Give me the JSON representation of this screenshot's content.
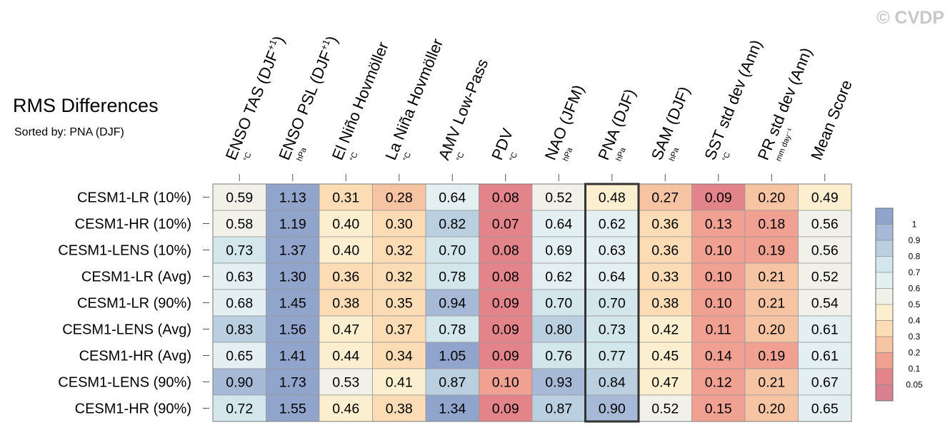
{
  "chart_data": {
    "type": "heatmap",
    "title": "RMS Differences",
    "subtitle": "Sorted by: PNA (DJF)",
    "copyright": "© CVDP",
    "columns": [
      {
        "name": "ENSO TAS (DJF",
        "sup": "+1",
        "close": ")",
        "unit": "°C"
      },
      {
        "name": "ENSO PSL (DJF",
        "sup": "+1",
        "close": ")",
        "unit": "hPa"
      },
      {
        "name": "El Niño Hovmöller",
        "sup": "",
        "close": "",
        "unit": "°C"
      },
      {
        "name": "La Niña Hovmöller",
        "sup": "",
        "close": "",
        "unit": "°C"
      },
      {
        "name": "AMV Low-Pass",
        "sup": "",
        "close": "",
        "unit": "°C"
      },
      {
        "name": "PDV",
        "sup": "",
        "close": "",
        "unit": "°C"
      },
      {
        "name": "NAO (JFM)",
        "sup": "",
        "close": "",
        "unit": "hPa"
      },
      {
        "name": "PNA (DJF)",
        "sup": "",
        "close": "",
        "unit": "hPa"
      },
      {
        "name": "SAM (DJF)",
        "sup": "",
        "close": "",
        "unit": "hPa"
      },
      {
        "name": "SST std dev (Ann)",
        "sup": "",
        "close": "",
        "unit": "°C"
      },
      {
        "name": "PR std dev (Ann)",
        "sup": "",
        "close": "",
        "unit": "mm day⁻¹"
      },
      {
        "name": "Mean Score",
        "sup": "",
        "close": "",
        "unit": ""
      }
    ],
    "rows": [
      "CESM1-LR (10%)",
      "CESM1-HR (10%)",
      "CESM1-LENS (10%)",
      "CESM1-LR (Avg)",
      "CESM1-LR (90%)",
      "CESM1-LENS (Avg)",
      "CESM1-HR (Avg)",
      "CESM1-LENS (90%)",
      "CESM1-HR (90%)"
    ],
    "values": [
      [
        "0.59",
        "1.13",
        "0.31",
        "0.28",
        "0.64",
        "0.08",
        "0.52",
        "0.48",
        "0.27",
        "0.09",
        "0.20",
        "0.49"
      ],
      [
        "0.58",
        "1.19",
        "0.40",
        "0.30",
        "0.82",
        "0.07",
        "0.64",
        "0.62",
        "0.36",
        "0.13",
        "0.18",
        "0.56"
      ],
      [
        "0.73",
        "1.37",
        "0.40",
        "0.32",
        "0.70",
        "0.08",
        "0.69",
        "0.63",
        "0.36",
        "0.10",
        "0.19",
        "0.56"
      ],
      [
        "0.63",
        "1.30",
        "0.36",
        "0.32",
        "0.78",
        "0.08",
        "0.62",
        "0.64",
        "0.33",
        "0.10",
        "0.21",
        "0.52"
      ],
      [
        "0.68",
        "1.45",
        "0.38",
        "0.35",
        "0.94",
        "0.09",
        "0.70",
        "0.70",
        "0.38",
        "0.10",
        "0.21",
        "0.54"
      ],
      [
        "0.83",
        "1.56",
        "0.47",
        "0.37",
        "0.78",
        "0.09",
        "0.80",
        "0.73",
        "0.42",
        "0.11",
        "0.20",
        "0.61"
      ],
      [
        "0.65",
        "1.41",
        "0.44",
        "0.34",
        "1.05",
        "0.09",
        "0.76",
        "0.77",
        "0.45",
        "0.14",
        "0.19",
        "0.61"
      ],
      [
        "0.90",
        "1.73",
        "0.53",
        "0.41",
        "0.87",
        "0.10",
        "0.93",
        "0.84",
        "0.47",
        "0.12",
        "0.21",
        "0.67"
      ],
      [
        "0.72",
        "1.55",
        "0.46",
        "0.38",
        "1.34",
        "0.09",
        "0.87",
        "0.90",
        "0.52",
        "0.15",
        "0.20",
        "0.65"
      ]
    ],
    "highlight_column": 7,
    "colorbar": {
      "levels": [
        "1",
        "0.9",
        "0.8",
        "0.7",
        "0.6",
        "0.5",
        "0.4",
        "0.3",
        "0.2",
        "0.1",
        "0.05"
      ],
      "thresholds": [
        1.0,
        0.9,
        0.8,
        0.7,
        0.6,
        0.5,
        0.4,
        0.3,
        0.2,
        0.1,
        0.05
      ],
      "colors": [
        "#90a4cc",
        "#a6bad7",
        "#bad0e1",
        "#d2e6ec",
        "#e3eff1",
        "#f1f1ea",
        "#fcefcf",
        "#fbdcb4",
        "#f7c4a3",
        "#f0a192",
        "#e3838a",
        "#d87f90"
      ]
    }
  }
}
